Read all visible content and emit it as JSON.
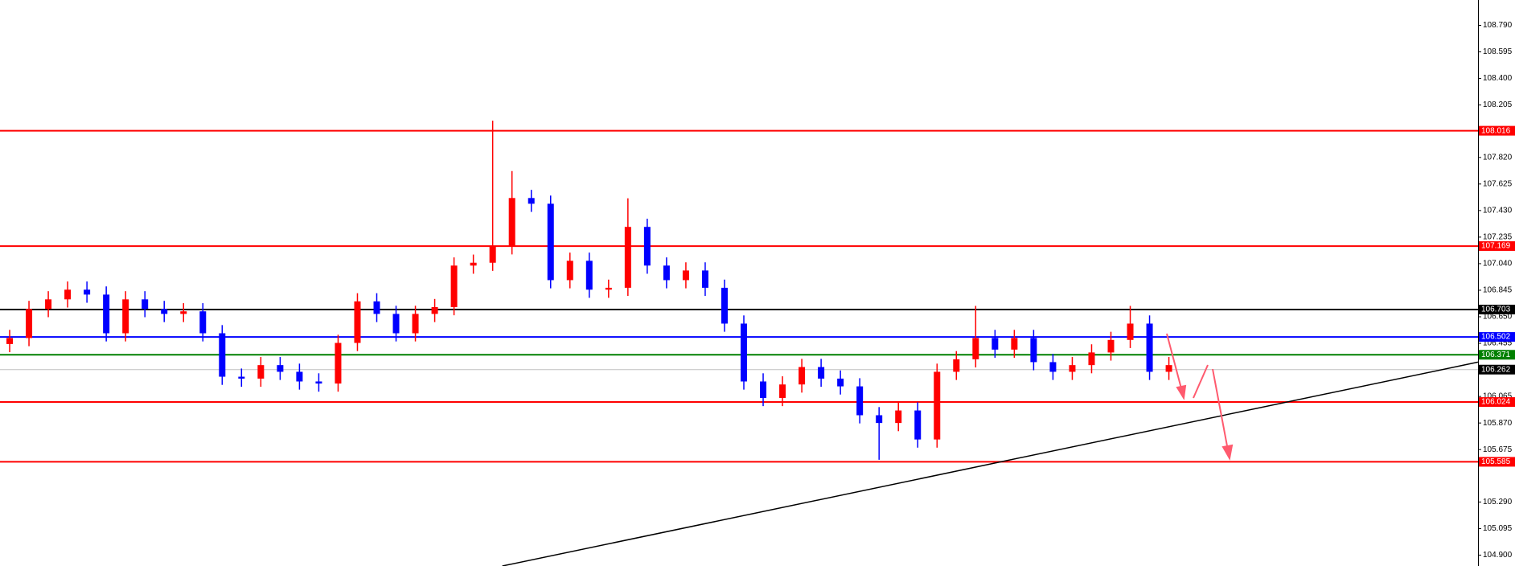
{
  "chart_data": {
    "type": "candlestick",
    "xlim": [
      -0.5,
      76
    ],
    "ylim": [
      104.82,
      108.976
    ],
    "yticks": [
      {
        "value": 108.79,
        "label": "108.790"
      },
      108.595,
      {
        "value": 108.4,
        "label": "108.400"
      },
      108.205,
      {
        "value": 107.82,
        "label": "107.820"
      },
      107.625,
      {
        "value": 107.43,
        "label": "107.430"
      },
      107.235,
      {
        "value": 107.04,
        "label": "107.040"
      },
      106.845,
      {
        "value": 106.65,
        "label": "106.650"
      },
      106.455,
      106.065,
      {
        "value": 105.87,
        "label": "105.870"
      },
      105.675,
      {
        "value": 105.29,
        "label": "105.290"
      },
      105.095,
      {
        "value": 104.9,
        "label": "104.900"
      }
    ],
    "up_color": "#ff0000",
    "down_color": "#0000ff",
    "open": [
      106.45,
      106.494,
      106.707,
      106.778,
      106.849,
      106.813,
      106.529,
      106.778,
      106.707,
      106.671,
      106.69,
      106.529,
      106.21,
      106.196,
      106.295,
      106.246,
      106.175,
      106.16,
      106.458,
      106.763,
      106.671,
      106.529,
      106.671,
      106.721,
      107.026,
      107.047,
      107.168,
      107.522,
      107.48,
      106.919,
      107.061,
      106.849,
      106.863,
      107.31,
      107.026,
      106.919,
      106.99,
      106.863,
      106.6,
      106.175,
      106.054,
      106.153,
      106.281,
      106.196,
      106.139,
      105.927,
      105.87,
      105.962,
      105.749,
      106.246,
      106.338,
      106.494,
      106.409,
      106.494,
      106.317,
      106.246,
      106.295,
      106.388,
      106.48,
      106.6,
      106.246
    ],
    "high": [
      106.554,
      106.767,
      106.838,
      106.909,
      106.909,
      106.873,
      106.838,
      106.838,
      106.767,
      106.75,
      106.75,
      106.589,
      106.27,
      106.355,
      106.355,
      106.306,
      106.235,
      106.518,
      106.823,
      106.823,
      106.731,
      106.731,
      106.781,
      107.086,
      107.107,
      108.09,
      107.72,
      107.582,
      107.54,
      107.121,
      107.121,
      106.923,
      107.52,
      107.37,
      107.086,
      107.05,
      107.05,
      106.923,
      106.66,
      106.235,
      106.213,
      106.341,
      106.341,
      106.256,
      106.199,
      105.987,
      106.022,
      106.022,
      106.306,
      106.398,
      106.73,
      106.554,
      106.554,
      106.554,
      106.377,
      106.355,
      106.448,
      106.54,
      106.73,
      106.66,
      106.355
    ],
    "low": [
      106.39,
      106.434,
      106.647,
      106.718,
      106.753,
      106.469,
      106.469,
      106.647,
      106.611,
      106.611,
      106.469,
      106.15,
      106.136,
      106.136,
      106.186,
      106.115,
      106.1,
      106.1,
      106.398,
      106.611,
      106.469,
      106.469,
      106.611,
      106.661,
      106.966,
      106.987,
      107.108,
      107.42,
      106.859,
      106.859,
      106.789,
      106.789,
      106.803,
      106.966,
      106.859,
      106.859,
      106.803,
      106.54,
      106.115,
      105.994,
      105.994,
      106.093,
      106.136,
      106.079,
      105.867,
      105.6,
      105.81,
      105.689,
      105.689,
      106.186,
      106.278,
      106.349,
      106.349,
      106.257,
      106.186,
      106.186,
      106.235,
      106.328,
      106.42,
      106.186,
      106.186
    ],
    "close": [
      106.494,
      106.707,
      106.778,
      106.849,
      106.813,
      106.529,
      106.778,
      106.707,
      106.671,
      106.69,
      106.529,
      106.21,
      106.196,
      106.295,
      106.246,
      106.175,
      106.16,
      106.458,
      106.763,
      106.671,
      106.529,
      106.671,
      106.721,
      107.026,
      107.047,
      107.168,
      107.522,
      107.48,
      106.919,
      107.061,
      106.849,
      106.863,
      107.31,
      107.026,
      106.919,
      106.99,
      106.863,
      106.6,
      106.175,
      106.054,
      106.153,
      106.281,
      106.196,
      106.139,
      105.927,
      105.87,
      105.962,
      105.749,
      106.246,
      106.338,
      106.494,
      106.409,
      106.494,
      106.317,
      106.246,
      106.295,
      106.388,
      106.48,
      106.6,
      106.246,
      106.295
    ],
    "levels": [
      {
        "value": 108.016,
        "color": "#ff0000"
      },
      {
        "value": 107.169,
        "color": "#ff0000"
      },
      {
        "value": 106.703,
        "color": "#000000"
      },
      {
        "value": 106.502,
        "color": "#0000ff"
      },
      {
        "value": 106.371,
        "color": "#008000"
      },
      {
        "value": 106.262,
        "color": "#c0c0c0",
        "label_color": "#000000"
      },
      {
        "value": 106.024,
        "color": "#ff0000"
      },
      {
        "value": 105.585,
        "color": "#ff0000"
      }
    ],
    "trendline": {
      "x": [
        25.5,
        76
      ],
      "values": [
        104.82,
        106.317
      ],
      "color": "#000000"
    }
  }
}
